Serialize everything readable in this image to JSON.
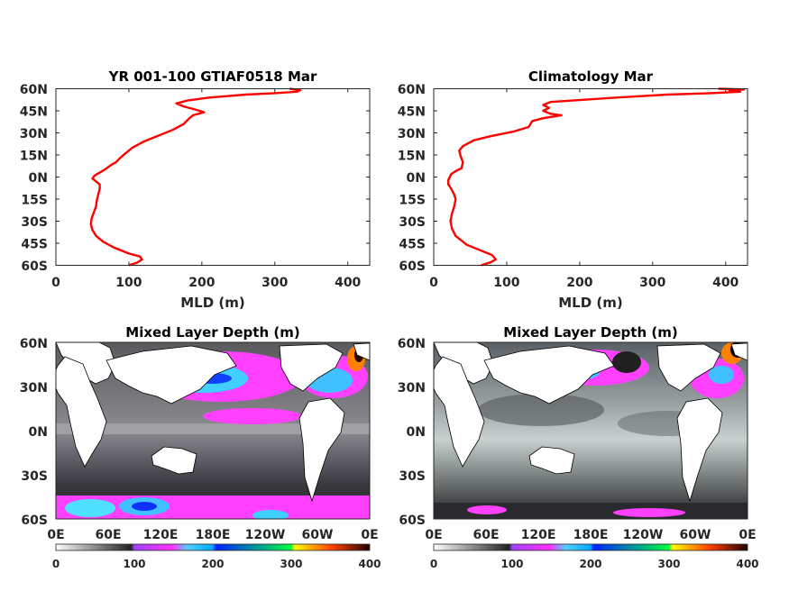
{
  "chart_data": [
    {
      "type": "line",
      "title": "YR 001-100 GTIAF0518 Mar",
      "xlabel": "MLD (m)",
      "ylabel": "",
      "xlim": [
        0,
        430
      ],
      "ylim": [
        -60,
        60
      ],
      "xticks": [
        0,
        100,
        200,
        300,
        400
      ],
      "yticks": [
        60,
        45,
        30,
        15,
        0,
        -15,
        -30,
        -45,
        -60
      ],
      "ytick_labels": [
        "60N",
        "45N",
        "30N",
        "15N",
        "0N",
        "15S",
        "30S",
        "45S",
        "60S"
      ],
      "series": [
        {
          "color": "#ff0000",
          "points": [
            [
              100,
              -60
            ],
            [
              112,
              -58
            ],
            [
              118,
              -56
            ],
            [
              115,
              -54
            ],
            [
              100,
              -52
            ],
            [
              80,
              -48
            ],
            [
              65,
              -44
            ],
            [
              55,
              -40
            ],
            [
              50,
              -36
            ],
            [
              48,
              -32
            ],
            [
              49,
              -28
            ],
            [
              52,
              -24
            ],
            [
              55,
              -20
            ],
            [
              56,
              -16
            ],
            [
              58,
              -12
            ],
            [
              60,
              -8
            ],
            [
              60,
              -5
            ],
            [
              55,
              -3
            ],
            [
              50,
              -1
            ],
            [
              53,
              1
            ],
            [
              60,
              3
            ],
            [
              67,
              5
            ],
            [
              75,
              8
            ],
            [
              82,
              10
            ],
            [
              88,
              13
            ],
            [
              95,
              16
            ],
            [
              105,
              20
            ],
            [
              120,
              24
            ],
            [
              140,
              28
            ],
            [
              160,
              32
            ],
            [
              175,
              36
            ],
            [
              183,
              40
            ],
            [
              188,
              42
            ],
            [
              203,
              44
            ],
            [
              190,
              46
            ],
            [
              175,
              48
            ],
            [
              165,
              50
            ],
            [
              180,
              52
            ],
            [
              210,
              54
            ],
            [
              260,
              56
            ],
            [
              300,
              57
            ],
            [
              330,
              58
            ],
            [
              335,
              59
            ],
            [
              320,
              60
            ]
          ]
        }
      ]
    },
    {
      "type": "line",
      "title": "Climatology Mar",
      "xlabel": "MLD (m)",
      "ylabel": "",
      "xlim": [
        0,
        430
      ],
      "ylim": [
        -60,
        60
      ],
      "xticks": [
        0,
        100,
        200,
        300,
        400
      ],
      "yticks": [
        60,
        45,
        30,
        15,
        0,
        -15,
        -30,
        -45,
        -60
      ],
      "ytick_labels": [
        "60N",
        "45N",
        "30N",
        "15N",
        "0N",
        "15S",
        "30S",
        "45S",
        "60S"
      ],
      "series": [
        {
          "color": "#ff0000",
          "points": [
            [
              65,
              -60
            ],
            [
              78,
              -58
            ],
            [
              85,
              -56
            ],
            [
              80,
              -53
            ],
            [
              65,
              -50
            ],
            [
              45,
              -46
            ],
            [
              30,
              -40
            ],
            [
              25,
              -35
            ],
            [
              23,
              -30
            ],
            [
              25,
              -25
            ],
            [
              28,
              -20
            ],
            [
              30,
              -15
            ],
            [
              28,
              -12
            ],
            [
              24,
              -8
            ],
            [
              20,
              -5
            ],
            [
              20,
              -2
            ],
            [
              22,
              0
            ],
            [
              24,
              2
            ],
            [
              30,
              4
            ],
            [
              38,
              6
            ],
            [
              40,
              10
            ],
            [
              37,
              14
            ],
            [
              35,
              18
            ],
            [
              40,
              21
            ],
            [
              55,
              25
            ],
            [
              80,
              28
            ],
            [
              110,
              31
            ],
            [
              130,
              34
            ],
            [
              135,
              38
            ],
            [
              150,
              40
            ],
            [
              175,
              42
            ],
            [
              160,
              43
            ],
            [
              150,
              45
            ],
            [
              158,
              47
            ],
            [
              150,
              49
            ],
            [
              160,
              51
            ],
            [
              190,
              52
            ],
            [
              250,
              54
            ],
            [
              320,
              56
            ],
            [
              380,
              57
            ],
            [
              420,
              58
            ],
            [
              405,
              59
            ],
            [
              425,
              59.5
            ],
            [
              390,
              60
            ]
          ]
        }
      ]
    },
    {
      "type": "heatmap",
      "title": "Mixed Layer Depth (m)",
      "xtick_labels": [
        "0E",
        "60E",
        "120E",
        "180E",
        "120W",
        "60W",
        "0E"
      ],
      "ytick_labels": [
        "60N",
        "30N",
        "0N",
        "30S",
        "60S"
      ],
      "colorbar": {
        "ticks": [
          "0",
          "100",
          "200",
          "300",
          "400"
        ],
        "range": [
          0,
          400
        ]
      }
    },
    {
      "type": "heatmap",
      "title": "Mixed Layer Depth (m)",
      "xtick_labels": [
        "0E",
        "60E",
        "120E",
        "180E",
        "120W",
        "60W",
        "0E"
      ],
      "ytick_labels": [
        "60N",
        "30N",
        "0N",
        "30S",
        "60S"
      ],
      "colorbar": {
        "ticks": [
          "0",
          "100",
          "200",
          "300",
          "400"
        ],
        "range": [
          0,
          400
        ]
      }
    }
  ]
}
